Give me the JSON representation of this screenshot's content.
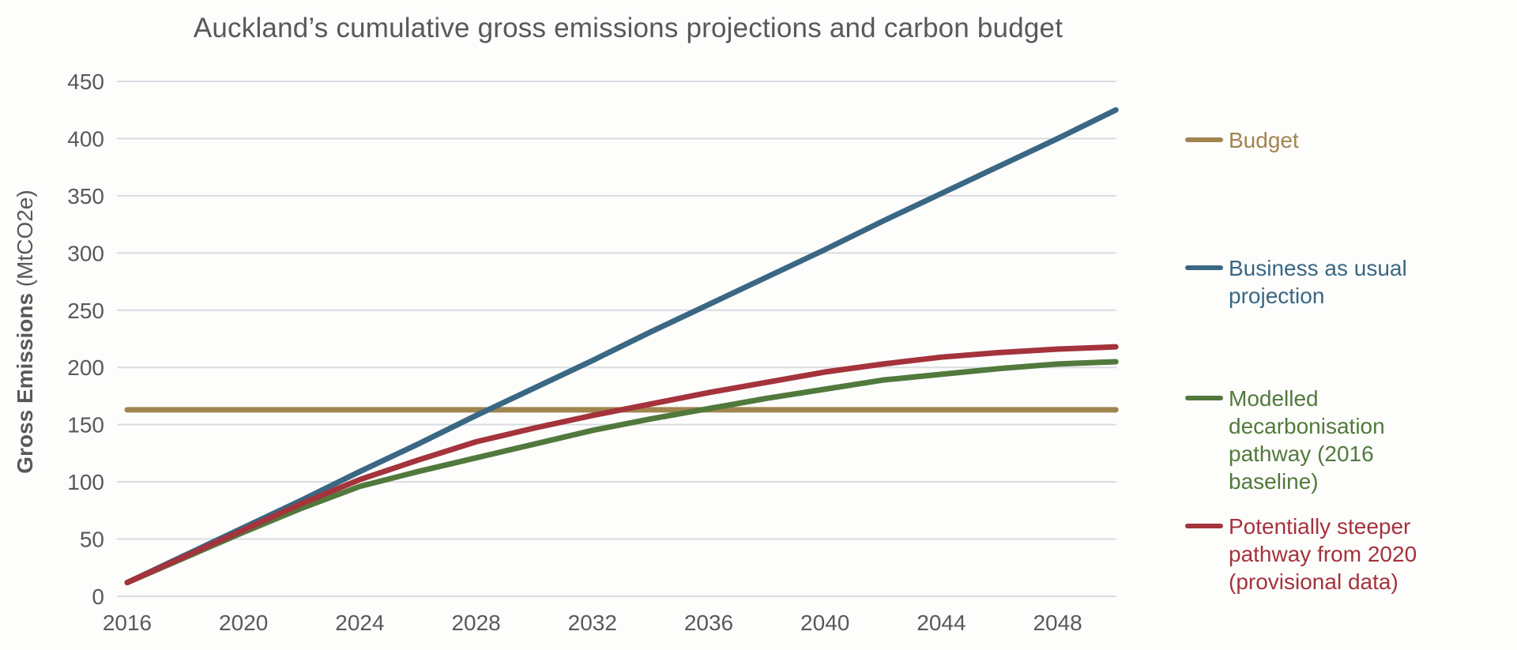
{
  "title": "Auckland’s cumulative gross emissions projections and carbon budget",
  "y_axis_title": {
    "bold_part": "Gross Emissions",
    "unit_part": " (MtCO2e)"
  },
  "colors": {
    "budget": "#A1854F",
    "bau": "#3A6783",
    "modelled": "#51793C",
    "steeper": "#A4333C",
    "text": "#595959",
    "grid": "#D9DCE1"
  },
  "legend": {
    "items": [
      {
        "key": "budget",
        "label": "Budget"
      },
      {
        "key": "bau",
        "label": "Business as usual projection"
      },
      {
        "key": "modelled",
        "label": "Modelled decarbonisation pathway (2016 baseline)"
      },
      {
        "key": "steeper",
        "label": "Potentially steeper pathway from 2020 (provisional data)"
      }
    ]
  },
  "chart_data": {
    "type": "line",
    "title": "Auckland’s cumulative gross emissions projections and carbon budget",
    "xlabel": "",
    "ylabel": "Gross Emissions (MtCO2e)",
    "ylim": [
      0,
      450
    ],
    "xlim": [
      2016,
      2050
    ],
    "yticks": [
      0,
      50,
      100,
      150,
      200,
      250,
      300,
      350,
      400,
      450
    ],
    "xticks": [
      2016,
      2020,
      2024,
      2028,
      2032,
      2036,
      2040,
      2044,
      2048
    ],
    "grid": "horizontal",
    "legend_position": "right",
    "x": [
      2016,
      2018,
      2020,
      2022,
      2024,
      2026,
      2028,
      2030,
      2032,
      2034,
      2036,
      2038,
      2040,
      2042,
      2044,
      2046,
      2048,
      2050
    ],
    "series": [
      {
        "name": "Budget",
        "color_key": "budget",
        "values": [
          163,
          163,
          163,
          163,
          163,
          163,
          163,
          163,
          163,
          163,
          163,
          163,
          163,
          163,
          163,
          163,
          163,
          163
        ]
      },
      {
        "name": "Business as usual projection",
        "color_key": "bau",
        "values": [
          12,
          36,
          60,
          84,
          109,
          133,
          158,
          182,
          206,
          231,
          255,
          279,
          303,
          328,
          352,
          376,
          400,
          425
        ]
      },
      {
        "name": "Modelled decarbonisation pathway (2016 baseline)",
        "color_key": "modelled",
        "values": [
          12,
          34,
          56,
          77,
          96,
          109,
          121,
          133,
          145,
          155,
          164,
          173,
          181,
          189,
          194,
          199,
          203,
          205
        ]
      },
      {
        "name": "Potentially steeper pathway from 2020 (provisional data)",
        "color_key": "steeper",
        "values": [
          12,
          35,
          58,
          81,
          102,
          119,
          135,
          147,
          158,
          168,
          178,
          187,
          196,
          203,
          209,
          213,
          216,
          218
        ]
      }
    ]
  }
}
